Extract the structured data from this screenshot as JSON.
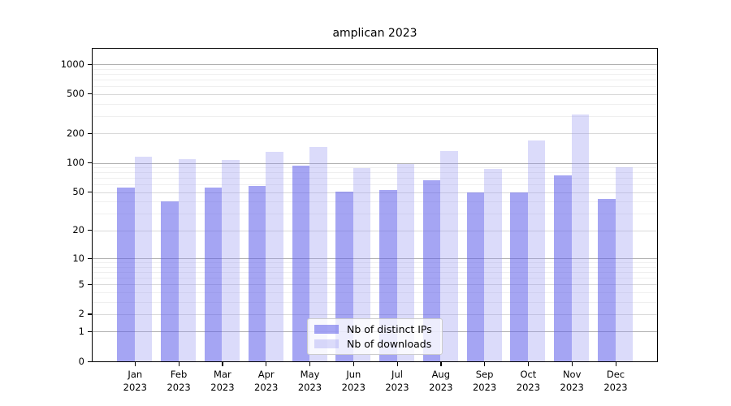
{
  "chart_data": {
    "type": "bar",
    "title": "amplican 2023",
    "categories": [
      "Jan",
      "Feb",
      "Mar",
      "Apr",
      "May",
      "Jun",
      "Jul",
      "Aug",
      "Sep",
      "Oct",
      "Nov",
      "Dec"
    ],
    "x_year_label": "2023",
    "series": [
      {
        "name": "Nb of distinct IPs",
        "color": "rgba(91,91,233,0.55)",
        "values": [
          56,
          40,
          56,
          58,
          94,
          51,
          53,
          66,
          50,
          50,
          75,
          43
        ]
      },
      {
        "name": "Nb of downloads",
        "color": "rgba(152,152,241,0.35)",
        "values": [
          115,
          110,
          108,
          130,
          146,
          89,
          97,
          131,
          87,
          170,
          310,
          90
        ]
      }
    ],
    "y_ticks": [
      0,
      1,
      2,
      5,
      10,
      20,
      50,
      100,
      200,
      500,
      1000
    ],
    "y_scale": "log1p",
    "ylim": [
      0,
      1430
    ],
    "grid": "on",
    "legend_position": "lower-center"
  }
}
